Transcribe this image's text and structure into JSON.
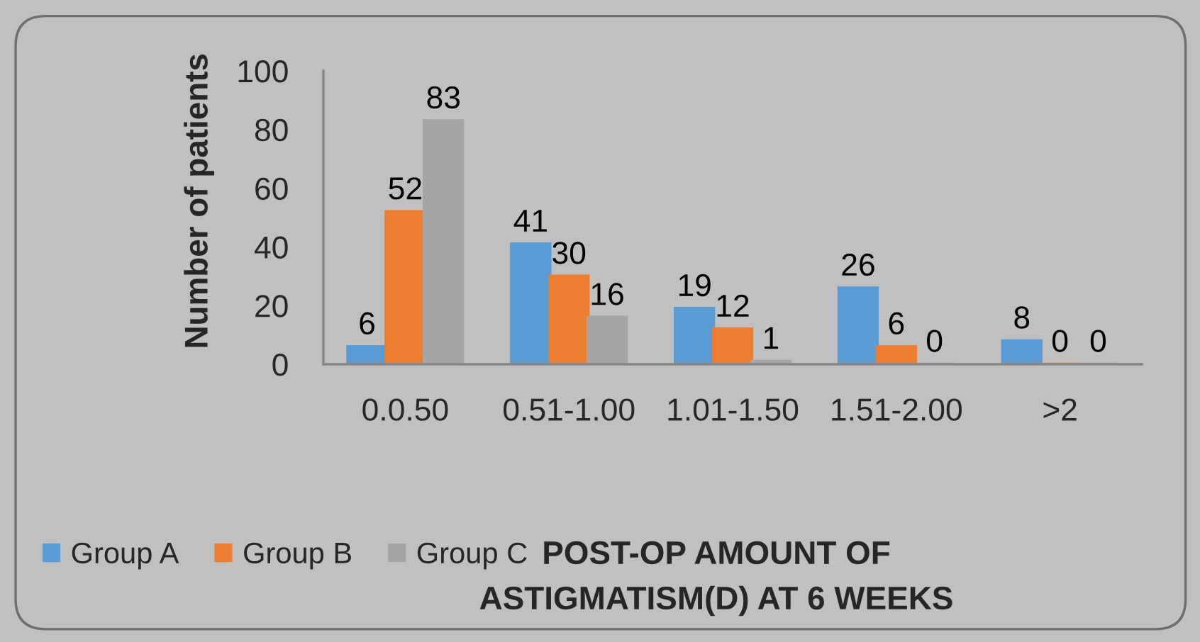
{
  "chart_data": {
    "type": "bar",
    "categories": [
      "0.0.50",
      "0.51-1.00",
      "1.01-1.50",
      "1.51-2.00",
      ">2"
    ],
    "series": [
      {
        "name": "Group A",
        "color": "#5b9bd5",
        "values": [
          6,
          41,
          19,
          26,
          8
        ]
      },
      {
        "name": "Group B",
        "color": "#ed7d31",
        "values": [
          52,
          30,
          12,
          6,
          0
        ]
      },
      {
        "name": "Group C",
        "color": "#a5a5a5",
        "values": [
          83,
          16,
          1,
          0,
          0
        ]
      }
    ],
    "ylabel": "Number of patients",
    "annotations": [
      "POST-OP AMOUNT OF",
      "ASTIGMATISM(D) AT 6 WEEKS"
    ],
    "ylim": [
      0,
      100
    ],
    "yticks": [
      0,
      20,
      40,
      60,
      80,
      100
    ],
    "data_labels": true,
    "legend": "bottom left",
    "grid": false
  }
}
